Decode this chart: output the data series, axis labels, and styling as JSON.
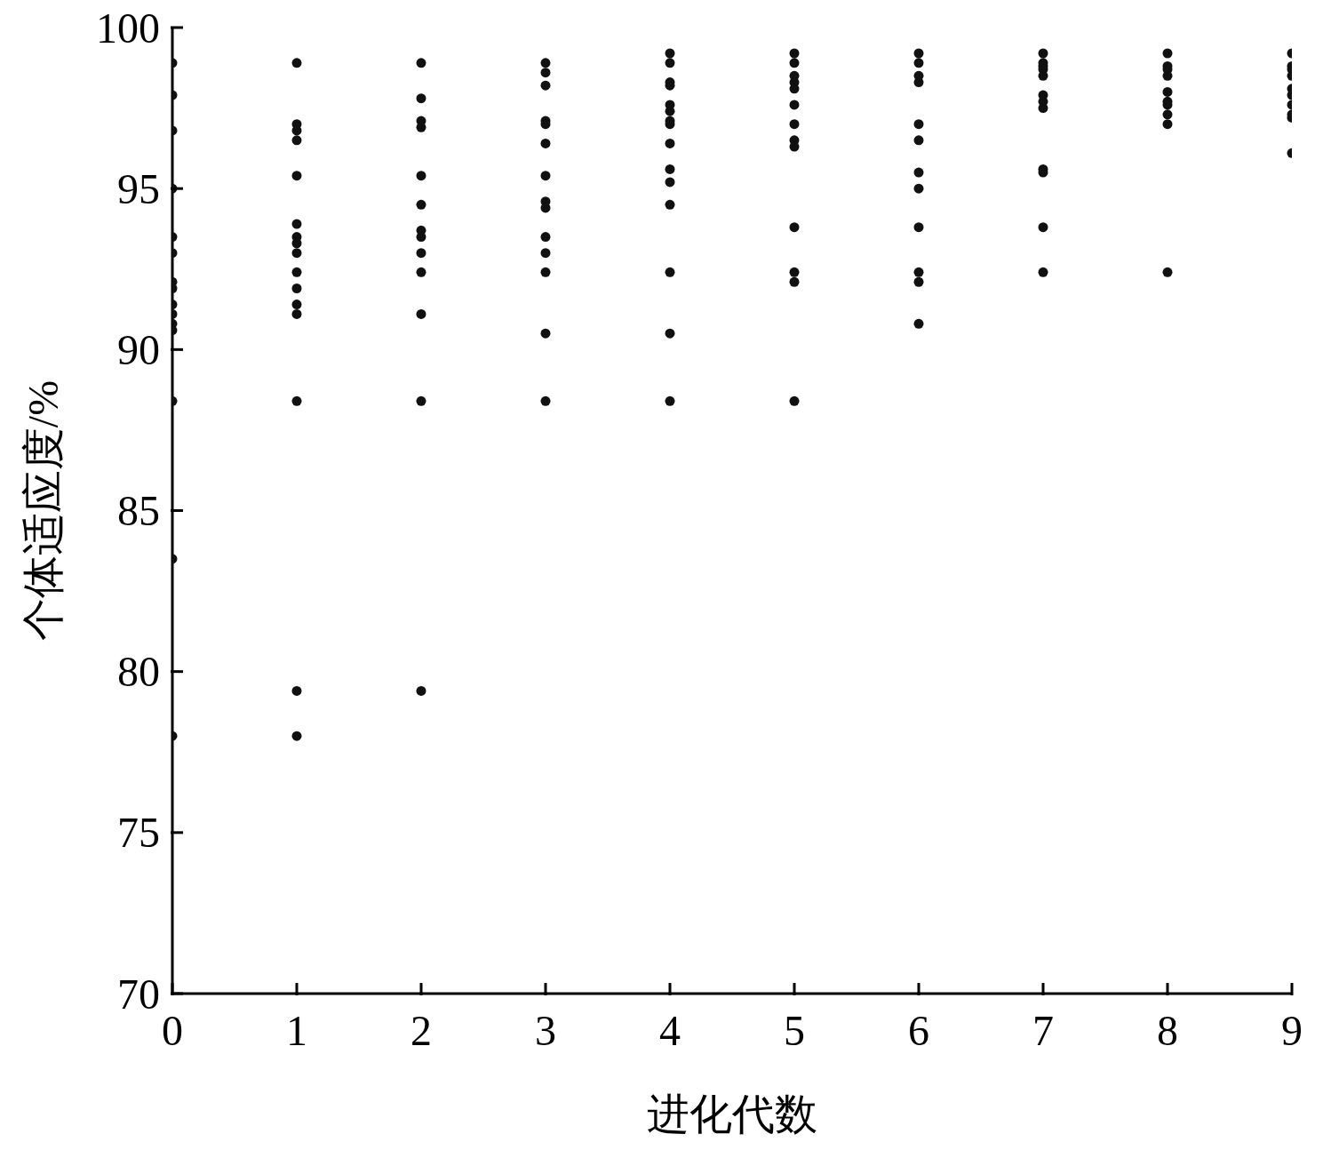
{
  "chart_data": {
    "type": "scatter",
    "xlabel": "进化代数",
    "ylabel": "个体适应度/%",
    "xlim": [
      0,
      9
    ],
    "xticks": [
      0,
      1,
      2,
      3,
      4,
      5,
      6,
      7,
      8,
      9
    ],
    "ylim": [
      70,
      100
    ],
    "yticks": [
      70,
      75,
      80,
      85,
      90,
      95,
      100
    ],
    "marker": "circle",
    "grid": false,
    "legend": false,
    "series": [
      {
        "color": "#111111",
        "x": [
          0,
          0,
          0,
          0,
          0,
          0,
          0,
          0,
          0,
          0,
          0,
          0,
          0,
          0,
          0,
          1,
          1,
          1,
          1,
          1,
          1,
          1,
          1,
          1,
          1,
          1,
          1,
          1,
          1,
          1,
          1,
          2,
          2,
          2,
          2,
          2,
          2,
          2,
          2,
          2,
          2,
          2,
          2,
          2,
          3,
          3,
          3,
          3,
          3,
          3,
          3,
          3,
          3,
          3,
          3,
          3,
          3,
          3,
          4,
          4,
          4,
          4,
          4,
          4,
          4,
          4,
          4,
          4,
          4,
          4,
          4,
          4,
          4,
          5,
          5,
          5,
          5,
          5,
          5,
          5,
          5,
          5,
          5,
          5,
          5,
          5,
          6,
          6,
          6,
          6,
          6,
          6,
          6,
          6,
          6,
          6,
          6,
          6,
          7,
          7,
          7,
          7,
          7,
          7,
          7,
          7,
          7,
          7,
          7,
          7,
          8,
          8,
          8,
          8,
          8,
          8,
          8,
          8,
          8,
          8,
          9,
          9,
          9,
          9,
          9,
          9,
          9,
          9,
          9,
          9
        ],
        "values": [
          98.9,
          97.9,
          96.8,
          95.0,
          93.5,
          93.0,
          92.1,
          91.9,
          91.4,
          91.1,
          90.8,
          90.6,
          88.4,
          83.5,
          78.0,
          98.9,
          97.0,
          96.8,
          96.5,
          95.4,
          93.9,
          93.5,
          93.3,
          93.0,
          92.4,
          91.9,
          91.4,
          91.1,
          88.4,
          79.4,
          78.0,
          98.9,
          97.8,
          97.1,
          96.9,
          95.4,
          94.5,
          93.7,
          93.5,
          93.0,
          92.4,
          91.1,
          88.4,
          79.4,
          98.9,
          98.6,
          98.2,
          97.1,
          97.0,
          96.4,
          95.4,
          94.6,
          94.4,
          93.5,
          93.0,
          92.4,
          90.5,
          88.4,
          99.2,
          98.9,
          98.3,
          98.2,
          97.6,
          97.4,
          97.1,
          97.0,
          96.4,
          95.6,
          95.2,
          94.5,
          92.4,
          90.5,
          88.4,
          99.2,
          98.9,
          98.5,
          98.3,
          98.1,
          97.6,
          97.0,
          96.5,
          96.3,
          93.8,
          92.4,
          92.1,
          88.4,
          99.2,
          98.9,
          98.5,
          98.3,
          97.0,
          96.5,
          95.5,
          95.0,
          93.8,
          92.4,
          92.1,
          90.8,
          99.2,
          98.9,
          98.8,
          98.7,
          98.5,
          97.9,
          97.7,
          97.5,
          95.6,
          95.5,
          93.8,
          92.4,
          99.2,
          98.8,
          98.7,
          98.5,
          98.0,
          97.7,
          97.6,
          97.3,
          97.0,
          92.4,
          99.2,
          98.8,
          98.7,
          98.5,
          98.1,
          97.9,
          97.6,
          97.3,
          97.2,
          96.1
        ]
      }
    ]
  }
}
